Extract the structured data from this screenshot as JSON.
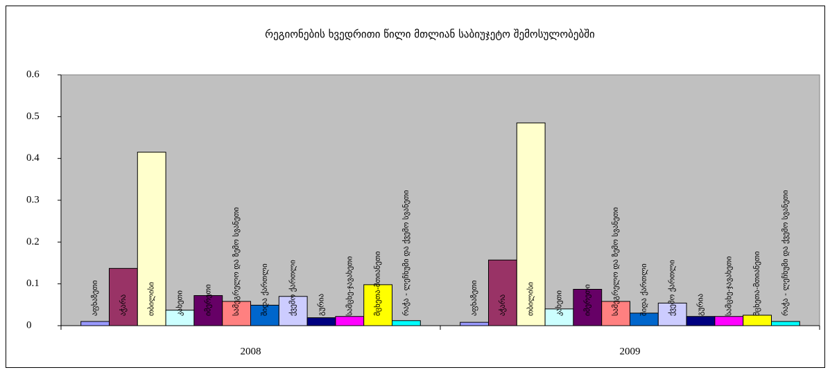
{
  "chart_data": {
    "type": "bar",
    "title": "რეგიონების ხვედრითი წილი მთლიან საბიუჯეტო შემოსულობებში",
    "categories": [
      "2008",
      "2009"
    ],
    "series": [
      {
        "name": "აფხაზეთი",
        "color": "#9999ff",
        "values": [
          0.01,
          0.008
        ]
      },
      {
        "name": "აჭარა",
        "color": "#993366",
        "values": [
          0.137,
          0.157
        ]
      },
      {
        "name": "თბილისი",
        "color": "#ffffcc",
        "values": [
          0.415,
          0.485
        ]
      },
      {
        "name": "კახეთი",
        "color": "#ccffff",
        "values": [
          0.037,
          0.04
        ]
      },
      {
        "name": "იმერეთი",
        "color": "#660066",
        "values": [
          0.072,
          0.087
        ]
      },
      {
        "name": "სამეგრელო და ზემო სვანეთი",
        "color": "#ff8080",
        "values": [
          0.058,
          0.058
        ]
      },
      {
        "name": "შიდა ქართლი",
        "color": "#0066cc",
        "values": [
          0.049,
          0.03
        ]
      },
      {
        "name": "ქვემო ქართლი",
        "color": "#ccccff",
        "values": [
          0.07,
          0.054
        ]
      },
      {
        "name": "გურია",
        "color": "#000080",
        "values": [
          0.019,
          0.022
        ]
      },
      {
        "name": "სამცხე-ჯავახეთი",
        "color": "#ff00ff",
        "values": [
          0.022,
          0.022
        ]
      },
      {
        "name": "მცხეთა-მთიანეთი",
        "color": "#ffff00",
        "values": [
          0.098,
          0.025
        ]
      },
      {
        "name": "რაჭა - ლეჩხუმი და ქვემო სვანეთი",
        "color": "#00ffff",
        "values": [
          0.012,
          0.01
        ]
      }
    ],
    "ylim": [
      0,
      0.6
    ],
    "yticks": [
      0,
      0.1,
      0.2,
      0.3,
      0.4,
      0.5,
      0.6
    ],
    "plot_color": "#c0c0c0"
  }
}
